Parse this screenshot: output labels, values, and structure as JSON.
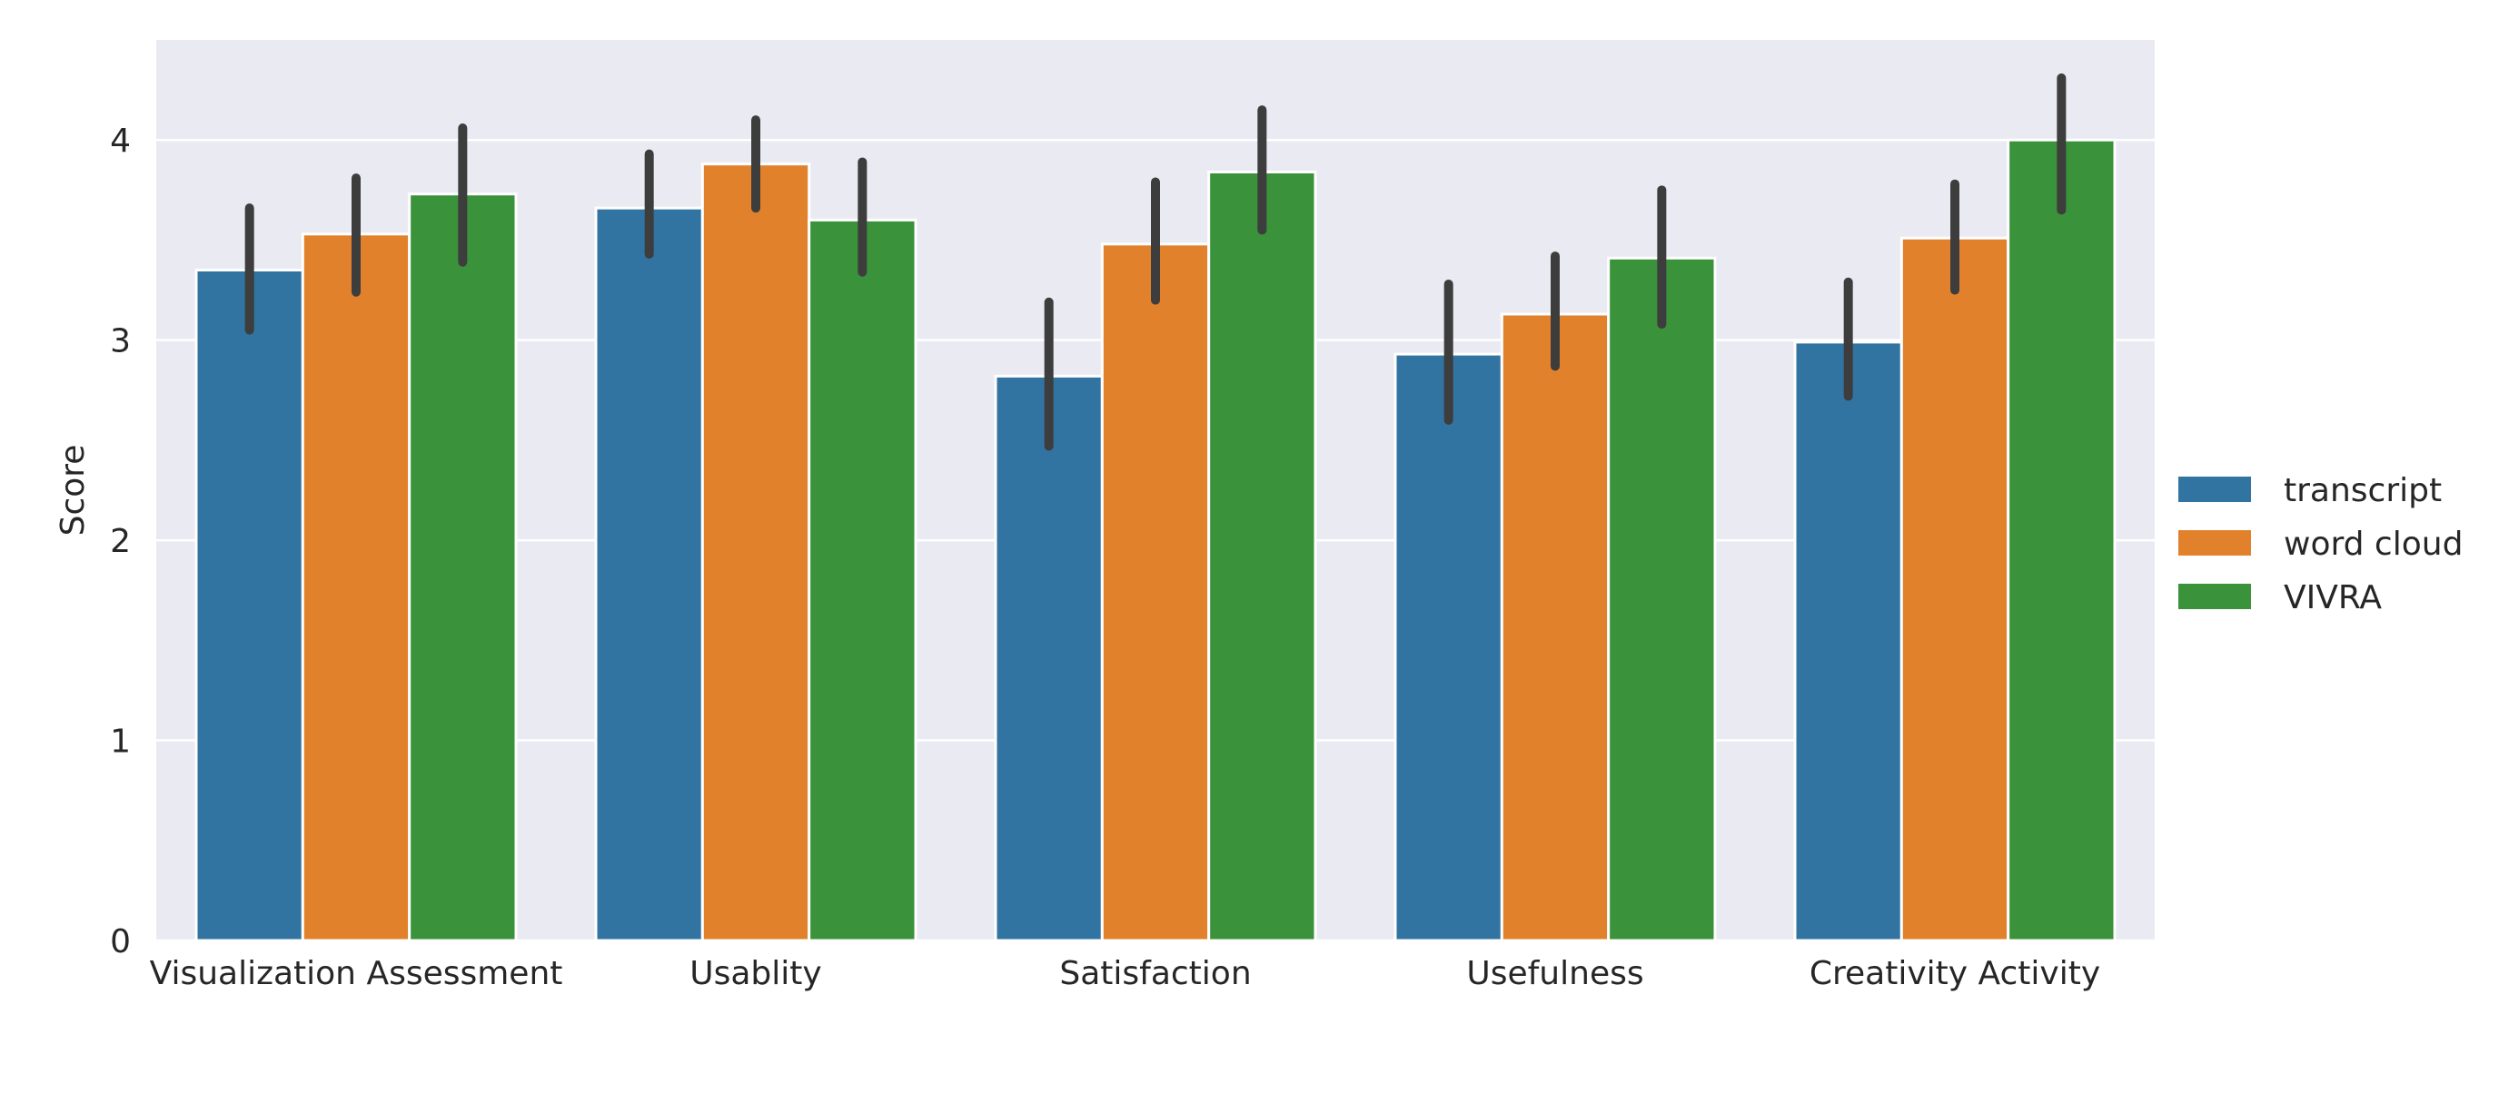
{
  "chart_data": {
    "type": "bar",
    "title": "",
    "xlabel": "",
    "ylabel": "Score",
    "ylim": [
      0,
      4.5
    ],
    "yticks": [
      0,
      1,
      2,
      3,
      4
    ],
    "grid": true,
    "legend_position": "right",
    "categories": [
      "Visualization Assessment",
      "Usablity",
      "Satisfaction",
      "Usefulness",
      "Creativity Activity"
    ],
    "series": [
      {
        "name": "transcript",
        "color": "#3274a1",
        "values": [
          3.35,
          3.66,
          2.82,
          2.93,
          2.99
        ],
        "ci_low": [
          3.05,
          3.43,
          2.47,
          2.6,
          2.72
        ],
        "ci_high": [
          3.66,
          3.93,
          3.19,
          3.28,
          3.29
        ]
      },
      {
        "name": "word cloud",
        "color": "#e1812c",
        "values": [
          3.53,
          3.88,
          3.48,
          3.13,
          3.51
        ],
        "ci_low": [
          3.24,
          3.66,
          3.2,
          2.87,
          3.25
        ],
        "ci_high": [
          3.81,
          4.1,
          3.79,
          3.42,
          3.78
        ]
      },
      {
        "name": "VIVRA",
        "color": "#3a923a",
        "values": [
          3.73,
          3.6,
          3.84,
          3.41,
          4.0
        ],
        "ci_low": [
          3.39,
          3.34,
          3.55,
          3.08,
          3.65
        ],
        "ci_high": [
          4.06,
          3.89,
          4.15,
          3.75,
          4.31
        ]
      }
    ],
    "colors": {
      "plot_background": "#eaeaf2",
      "grid": "#ffffff",
      "error_bar": "#3d3d3d"
    }
  }
}
